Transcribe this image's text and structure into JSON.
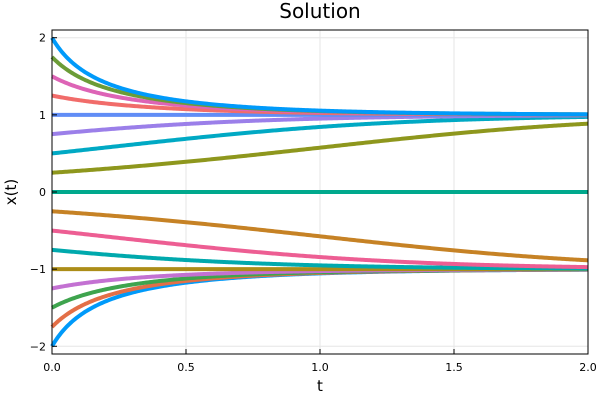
{
  "chart_data": {
    "type": "line",
    "title": "Solution",
    "xlabel": "t",
    "ylabel": "x(t)",
    "xlim": [
      0,
      2
    ],
    "ylim": [
      -2.1,
      2.1
    ],
    "xticks": [
      0,
      0.5,
      1,
      1.5,
      2
    ],
    "xtick_labels": [
      "0.0",
      "0.5",
      "1.0",
      "1.5",
      "2.0"
    ],
    "yticks": [
      -2,
      -1,
      0,
      1,
      2
    ],
    "ytick_labels": [
      "−2",
      "−1",
      "0",
      "1",
      "2"
    ],
    "grid": true,
    "legend": "none",
    "t_end": 2,
    "series": [
      {
        "x0": -2.0,
        "color": "#009AFA"
      },
      {
        "x0": -1.75,
        "color": "#E36F47"
      },
      {
        "x0": -1.5,
        "color": "#3EA44E"
      },
      {
        "x0": -1.25,
        "color": "#C371D2"
      },
      {
        "x0": -1.0,
        "color": "#AC8D18"
      },
      {
        "x0": -0.75,
        "color": "#00A9AD"
      },
      {
        "x0": -0.5,
        "color": "#ED5E93"
      },
      {
        "x0": -0.25,
        "color": "#C68225"
      },
      {
        "x0": 0.0,
        "color": "#00A98D"
      },
      {
        "x0": 0.25,
        "color": "#8E971D"
      },
      {
        "x0": 0.5,
        "color": "#00A9C4"
      },
      {
        "x0": 0.75,
        "color": "#9B7FE9"
      },
      {
        "x0": 1.0,
        "color": "#618DF6"
      },
      {
        "x0": 1.25,
        "color": "#F16C6A"
      },
      {
        "x0": 1.5,
        "color": "#DD64B6"
      },
      {
        "x0": 1.75,
        "color": "#6B9C37"
      },
      {
        "x0": 2.0,
        "color": "#009AFA"
      }
    ]
  }
}
